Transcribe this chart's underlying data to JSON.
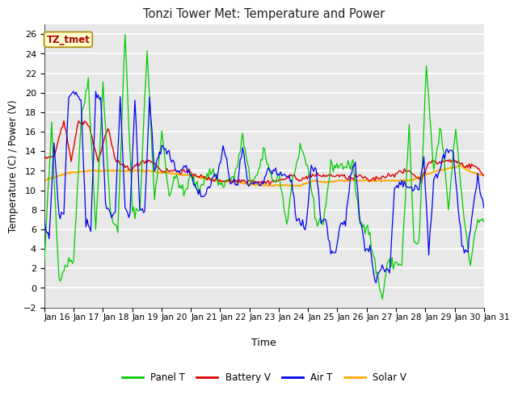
{
  "title": "Tonzi Tower Met: Temperature and Power",
  "xlabel": "Time",
  "ylabel": "Temperature (C) / Power (V)",
  "ylim": [
    -2,
    27
  ],
  "yticks": [
    -2,
    0,
    2,
    4,
    6,
    8,
    10,
    12,
    14,
    16,
    18,
    20,
    22,
    24,
    26
  ],
  "xtick_labels": [
    "Jan 16",
    "Jan 17",
    "Jan 18",
    "Jan 19",
    "Jan 20",
    "Jan 21",
    "Jan 22",
    "Jan 23",
    "Jan 24",
    "Jan 25",
    "Jan 26",
    "Jan 27",
    "Jan 28",
    "Jan 29",
    "Jan 30",
    "Jan 31"
  ],
  "colors": {
    "panel_t": "#00cc00",
    "battery_v": "#dd0000",
    "air_t": "#0000ee",
    "solar_v": "#ffaa00"
  },
  "fig_bg": "#ffffff",
  "plot_bg": "#e8e8e8",
  "grid_color": "#ffffff",
  "annotation_text": "TZ_tmet",
  "annotation_bg": "#ffffcc",
  "annotation_border": "#aa8800",
  "legend_labels": [
    "Panel T",
    "Battery V",
    "Air T",
    "Solar V"
  ]
}
